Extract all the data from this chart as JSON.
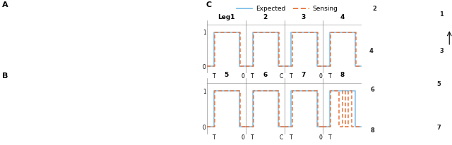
{
  "fig_width": 6.4,
  "fig_height": 2.06,
  "dpi": 100,
  "bg_color": "#ffffff",
  "panel_C_title": "C",
  "legend_expected_label": "Expected",
  "legend_sensing_label": "Sensing",
  "expected_color": "#7dbfe8",
  "sensing_color": "#e8733a",
  "leg_labels": [
    "Leg1",
    "2",
    "3",
    "4",
    "5",
    "6",
    "7",
    "8"
  ],
  "xtick_labels": [
    [
      "T",
      "0"
    ],
    [
      "T",
      "C"
    ],
    [
      "T",
      "0"
    ],
    [
      "T",
      ""
    ],
    [
      "T",
      "0"
    ],
    [
      "T",
      "C"
    ],
    [
      "T",
      "0"
    ],
    [
      "T",
      ""
    ]
  ],
  "panel_A_label": "A",
  "panel_B_label": "B"
}
